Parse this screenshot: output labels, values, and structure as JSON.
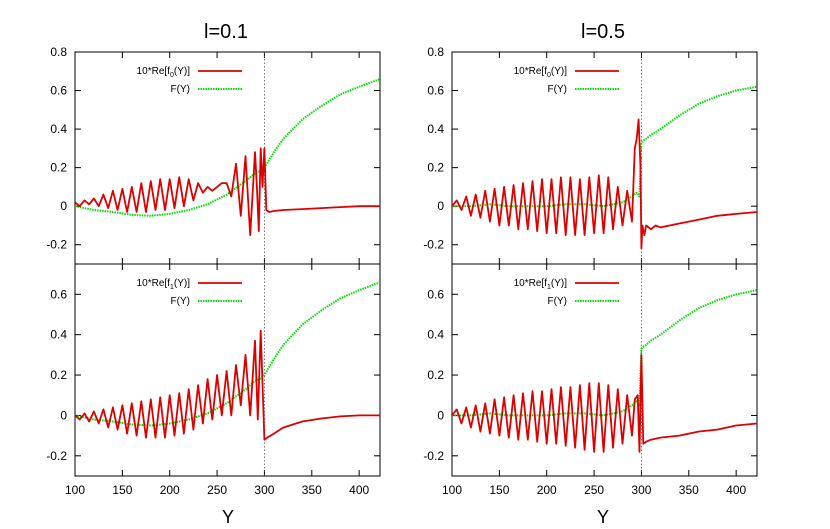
{
  "colors": {
    "red_series": "#dd0000",
    "green_series": "#00dd00",
    "axis": "#000000",
    "marker_line": "#555555"
  },
  "chart_data": [
    {
      "type": "line",
      "title": "l=0.1",
      "xlabel": "",
      "ylabel": "",
      "xlim": [
        100,
        422
      ],
      "ylim": [
        -0.3,
        0.8
      ],
      "xticks": [],
      "yticks": [
        "0.8",
        "0.6",
        "0.4",
        "0.2",
        "0",
        "-0.2"
      ],
      "legend_position": "top-left",
      "vertical_marker_x": 300,
      "series": [
        {
          "name": "10*Re[f0(Y)]",
          "name_parts": {
            "pre": "10*Re[f",
            "sub": "0",
            "post": "(Y)]"
          },
          "color": "#dd0000",
          "style": "solid",
          "x": [
            100,
            105,
            110,
            115,
            120,
            125,
            130,
            135,
            140,
            145,
            150,
            155,
            160,
            165,
            170,
            175,
            180,
            185,
            190,
            195,
            200,
            205,
            210,
            215,
            220,
            225,
            230,
            235,
            240,
            245,
            250,
            255,
            260,
            265,
            270,
            275,
            280,
            285,
            290,
            292,
            294,
            296,
            298,
            300,
            302,
            305,
            310,
            320,
            340,
            360,
            380,
            400,
            422
          ],
          "y": [
            0.02,
            0.0,
            0.03,
            0.01,
            0.04,
            0.0,
            0.06,
            -0.01,
            0.08,
            -0.02,
            0.09,
            -0.03,
            0.1,
            -0.03,
            0.12,
            -0.03,
            0.13,
            -0.02,
            0.14,
            -0.02,
            0.14,
            -0.01,
            0.15,
            0.0,
            0.14,
            0.03,
            0.12,
            0.07,
            0.1,
            0.08,
            0.1,
            0.12,
            0.12,
            0.05,
            0.22,
            -0.05,
            0.26,
            -0.15,
            0.28,
            0.1,
            -0.13,
            0.3,
            0.1,
            0.3,
            -0.02,
            -0.03,
            -0.025,
            -0.02,
            -0.015,
            -0.01,
            -0.005,
            0.0,
            0.0
          ]
        },
        {
          "name": "F(Y)",
          "color": "#00dd00",
          "style": "dotted",
          "x": [
            100,
            120,
            140,
            160,
            180,
            200,
            220,
            240,
            260,
            280,
            290,
            295,
            300,
            310,
            320,
            340,
            360,
            380,
            400,
            422
          ],
          "y": [
            0.0,
            -0.02,
            -0.03,
            -0.045,
            -0.05,
            -0.04,
            -0.02,
            0.01,
            0.06,
            0.13,
            0.17,
            0.18,
            0.2,
            0.28,
            0.35,
            0.45,
            0.52,
            0.58,
            0.62,
            0.66
          ]
        }
      ]
    },
    {
      "type": "line",
      "title": "",
      "xlabel": "Y",
      "ylabel": "",
      "xlim": [
        100,
        422
      ],
      "ylim": [
        -0.3,
        0.75
      ],
      "xticks": [
        "100",
        "150",
        "200",
        "250",
        "300",
        "350",
        "400"
      ],
      "yticks": [
        "0.6",
        "0.4",
        "0.2",
        "0",
        "-0.2"
      ],
      "legend_position": "top-left",
      "vertical_marker_x": 300,
      "series": [
        {
          "name": "10*Re[f1(Y)]",
          "name_parts": {
            "pre": "10*Re[f",
            "sub": "1",
            "post": "(Y)]"
          },
          "color": "#dd0000",
          "style": "solid",
          "x": [
            100,
            105,
            110,
            115,
            120,
            125,
            130,
            135,
            140,
            145,
            150,
            155,
            160,
            165,
            170,
            175,
            180,
            185,
            190,
            195,
            200,
            205,
            210,
            215,
            220,
            225,
            230,
            235,
            240,
            245,
            250,
            255,
            260,
            265,
            270,
            275,
            280,
            285,
            290,
            293,
            296,
            300,
            303,
            310,
            320,
            340,
            360,
            380,
            400,
            422
          ],
          "y": [
            0.0,
            -0.02,
            0.01,
            -0.03,
            0.02,
            -0.04,
            0.03,
            -0.06,
            0.04,
            -0.07,
            0.05,
            -0.09,
            0.06,
            -0.1,
            0.07,
            -0.11,
            0.08,
            -0.11,
            0.09,
            -0.11,
            0.1,
            -0.1,
            0.11,
            -0.09,
            0.13,
            -0.07,
            0.15,
            -0.04,
            0.18,
            -0.02,
            0.2,
            -0.0,
            0.22,
            0.0,
            0.25,
            0.05,
            0.3,
            0.0,
            0.37,
            -0.02,
            0.42,
            -0.12,
            -0.11,
            -0.09,
            -0.06,
            -0.03,
            -0.015,
            -0.005,
            0.0,
            0.0
          ]
        },
        {
          "name": "F(Y)",
          "color": "#00dd00",
          "style": "dotted",
          "x": [
            100,
            120,
            140,
            160,
            180,
            200,
            220,
            240,
            260,
            280,
            290,
            295,
            300,
            310,
            320,
            340,
            360,
            380,
            400,
            422
          ],
          "y": [
            0.0,
            -0.02,
            -0.03,
            -0.045,
            -0.05,
            -0.04,
            -0.02,
            0.01,
            0.06,
            0.13,
            0.17,
            0.18,
            0.2,
            0.28,
            0.35,
            0.45,
            0.52,
            0.58,
            0.62,
            0.66
          ]
        }
      ]
    },
    {
      "type": "line",
      "title": "l=0.5",
      "xlabel": "",
      "ylabel": "",
      "xlim": [
        100,
        422
      ],
      "ylim": [
        -0.3,
        0.8
      ],
      "xticks": [],
      "yticks": [
        "0.8",
        "0.6",
        "0.4",
        "0.2",
        "0",
        "-0.2"
      ],
      "legend_position": "top-left",
      "vertical_marker_x": 300,
      "series": [
        {
          "name": "10*Re[f0(Y)]",
          "name_parts": {
            "pre": "10*Re[f",
            "sub": "0",
            "post": "(Y)]"
          },
          "color": "#dd0000",
          "style": "solid",
          "x": [
            100,
            105,
            110,
            115,
            120,
            125,
            130,
            135,
            140,
            145,
            150,
            155,
            160,
            165,
            170,
            175,
            180,
            185,
            190,
            195,
            200,
            205,
            210,
            215,
            220,
            225,
            230,
            235,
            240,
            245,
            250,
            255,
            260,
            265,
            270,
            275,
            280,
            285,
            290,
            293,
            295,
            297,
            299,
            300,
            301,
            303,
            305,
            310,
            315,
            320,
            340,
            360,
            380,
            400,
            422
          ],
          "y": [
            0.0,
            0.03,
            -0.02,
            0.05,
            -0.05,
            0.06,
            -0.06,
            0.08,
            -0.08,
            0.09,
            -0.1,
            0.1,
            -0.1,
            0.11,
            -0.12,
            0.12,
            -0.12,
            0.13,
            -0.13,
            0.14,
            -0.14,
            0.14,
            -0.14,
            0.15,
            -0.15,
            0.15,
            -0.15,
            0.14,
            -0.15,
            0.15,
            -0.14,
            0.16,
            -0.14,
            0.15,
            -0.12,
            0.1,
            -0.1,
            0.08,
            -0.08,
            0.3,
            0.35,
            0.45,
            0.2,
            -0.22,
            -0.1,
            -0.15,
            -0.1,
            -0.12,
            -0.1,
            -0.11,
            -0.09,
            -0.07,
            -0.05,
            -0.04,
            -0.03
          ]
        },
        {
          "name": "F(Y)",
          "color": "#00dd00",
          "style": "dotted",
          "x": [
            100,
            120,
            140,
            160,
            180,
            200,
            220,
            240,
            260,
            280,
            290,
            295,
            298,
            300,
            302,
            305,
            310,
            320,
            340,
            360,
            380,
            400,
            422
          ],
          "y": [
            0.0,
            0.0,
            0.01,
            0.0,
            0.0,
            0.0,
            0.01,
            0.01,
            0.0,
            0.02,
            0.05,
            0.07,
            0.05,
            0.33,
            0.34,
            0.35,
            0.37,
            0.4,
            0.47,
            0.53,
            0.57,
            0.6,
            0.62
          ]
        }
      ]
    },
    {
      "type": "line",
      "title": "",
      "xlabel": "Y",
      "ylabel": "",
      "xlim": [
        100,
        422
      ],
      "ylim": [
        -0.3,
        0.75
      ],
      "xticks": [
        "100",
        "150",
        "200",
        "250",
        "300",
        "350",
        "400"
      ],
      "yticks": [
        "0.6",
        "0.4",
        "0.2",
        "0",
        "-0.2"
      ],
      "legend_position": "top-left",
      "vertical_marker_x": 300,
      "series": [
        {
          "name": "10*Re[f1(Y)]",
          "name_parts": {
            "pre": "10*Re[f",
            "sub": "1",
            "post": "(Y)]"
          },
          "color": "#dd0000",
          "style": "solid",
          "x": [
            100,
            105,
            110,
            115,
            120,
            125,
            130,
            135,
            140,
            145,
            150,
            155,
            160,
            165,
            170,
            175,
            180,
            185,
            190,
            195,
            200,
            205,
            210,
            215,
            220,
            225,
            230,
            235,
            240,
            245,
            250,
            255,
            260,
            265,
            270,
            275,
            280,
            285,
            290,
            293,
            296,
            298,
            300,
            302,
            305,
            310,
            320,
            340,
            360,
            380,
            400,
            422
          ],
          "y": [
            0.0,
            0.03,
            -0.04,
            0.04,
            -0.06,
            0.05,
            -0.08,
            0.06,
            -0.09,
            0.08,
            -0.1,
            0.09,
            -0.11,
            0.1,
            -0.12,
            0.11,
            -0.12,
            0.12,
            -0.13,
            0.12,
            -0.14,
            0.13,
            -0.14,
            0.14,
            -0.15,
            0.14,
            -0.16,
            0.15,
            -0.17,
            0.16,
            -0.18,
            0.16,
            -0.18,
            0.15,
            -0.16,
            0.13,
            -0.14,
            0.1,
            -0.1,
            0.08,
            0.1,
            -0.18,
            0.3,
            -0.14,
            -0.13,
            -0.12,
            -0.11,
            -0.1,
            -0.08,
            -0.07,
            -0.05,
            -0.04
          ]
        },
        {
          "name": "F(Y)",
          "color": "#00dd00",
          "style": "dotted",
          "x": [
            100,
            120,
            140,
            160,
            180,
            200,
            220,
            240,
            260,
            280,
            290,
            295,
            298,
            300,
            302,
            305,
            310,
            320,
            340,
            360,
            380,
            400,
            422
          ],
          "y": [
            0.0,
            0.0,
            0.01,
            0.0,
            0.0,
            0.0,
            0.01,
            0.01,
            0.0,
            0.02,
            0.05,
            0.07,
            0.05,
            0.33,
            0.34,
            0.35,
            0.37,
            0.4,
            0.47,
            0.53,
            0.57,
            0.6,
            0.62
          ]
        }
      ]
    }
  ]
}
